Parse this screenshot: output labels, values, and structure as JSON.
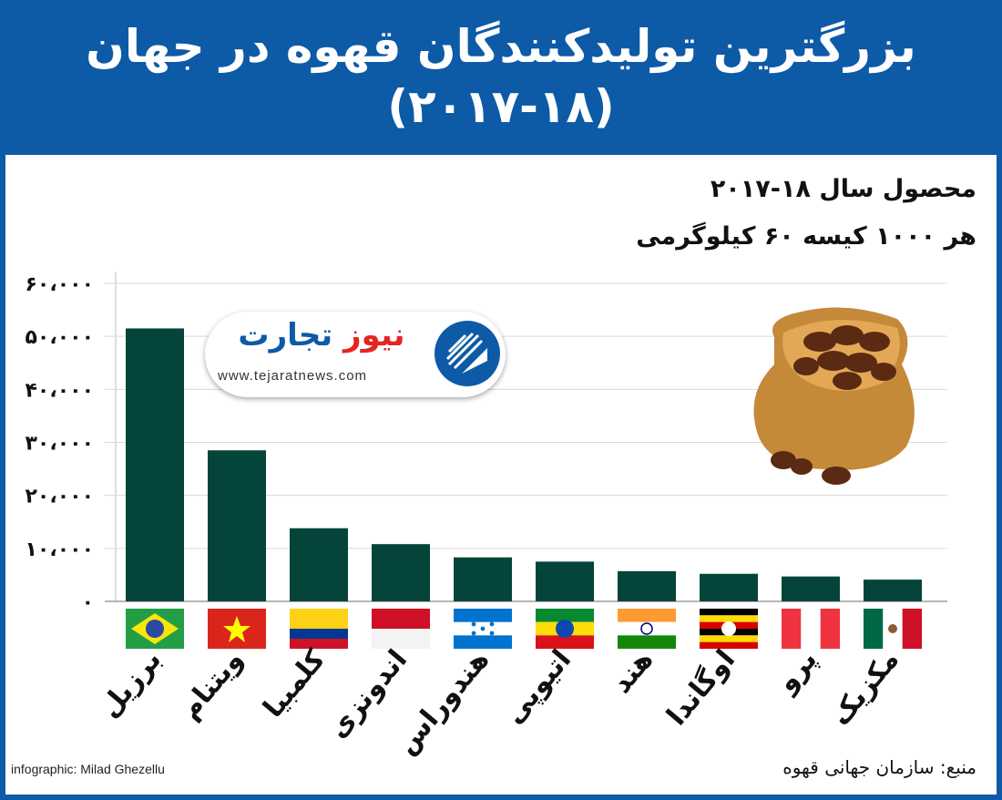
{
  "header": {
    "title_line1": "بزرگترین تولیدکنندگان قهوه در جهان",
    "title_line2": "(۲۰۱۷-۱۸)"
  },
  "subtitle": {
    "line1": "محصول سال ۱۸-۲۰۱۷",
    "line2": "هر ۱۰۰۰ کیسه ۶۰ کیلوگرمی"
  },
  "logo": {
    "name_part1": "تجارت",
    "name_part2": "نیوز",
    "url": "www.tejaratnews.com"
  },
  "footer": {
    "credit": "infographic: Milad Ghezellu",
    "source": "منبع: سازمان جهانی قهوه"
  },
  "colors": {
    "header_bg": "#0d5aa7",
    "bar": "#05443a",
    "grid": "#d9d9d9"
  },
  "chart_data": {
    "type": "bar",
    "title": "بزرگترین تولیدکنندگان قهوه در جهان (۲۰۱۷-۱۸)",
    "categories": [
      "برزیل",
      "ویتنام",
      "کلمبیا",
      "اندونزی",
      "هندوراس",
      "اتیوپی",
      "هند",
      "اوگاندا",
      "پرو",
      "مکزیک"
    ],
    "values": [
      51500,
      28500,
      13800,
      10800,
      8300,
      7500,
      5700,
      5200,
      4700,
      4100
    ],
    "ylim": [
      0,
      60000
    ],
    "yticks": [
      0,
      10000,
      20000,
      30000,
      40000,
      50000,
      60000
    ],
    "ytick_labels": [
      "۰",
      "۱۰،۰۰۰",
      "۲۰،۰۰۰",
      "۳۰،۰۰۰",
      "۴۰،۰۰۰",
      "۵۰،۰۰۰",
      "۶۰،۰۰۰"
    ],
    "grid": true,
    "flags": [
      "brazil-flag-icon",
      "vietnam-flag-icon",
      "colombia-flag-icon",
      "indonesia-flag-icon",
      "honduras-flag-icon",
      "ethiopia-flag-icon",
      "india-flag-icon",
      "uganda-flag-icon",
      "peru-flag-icon",
      "mexico-flag-icon"
    ]
  }
}
